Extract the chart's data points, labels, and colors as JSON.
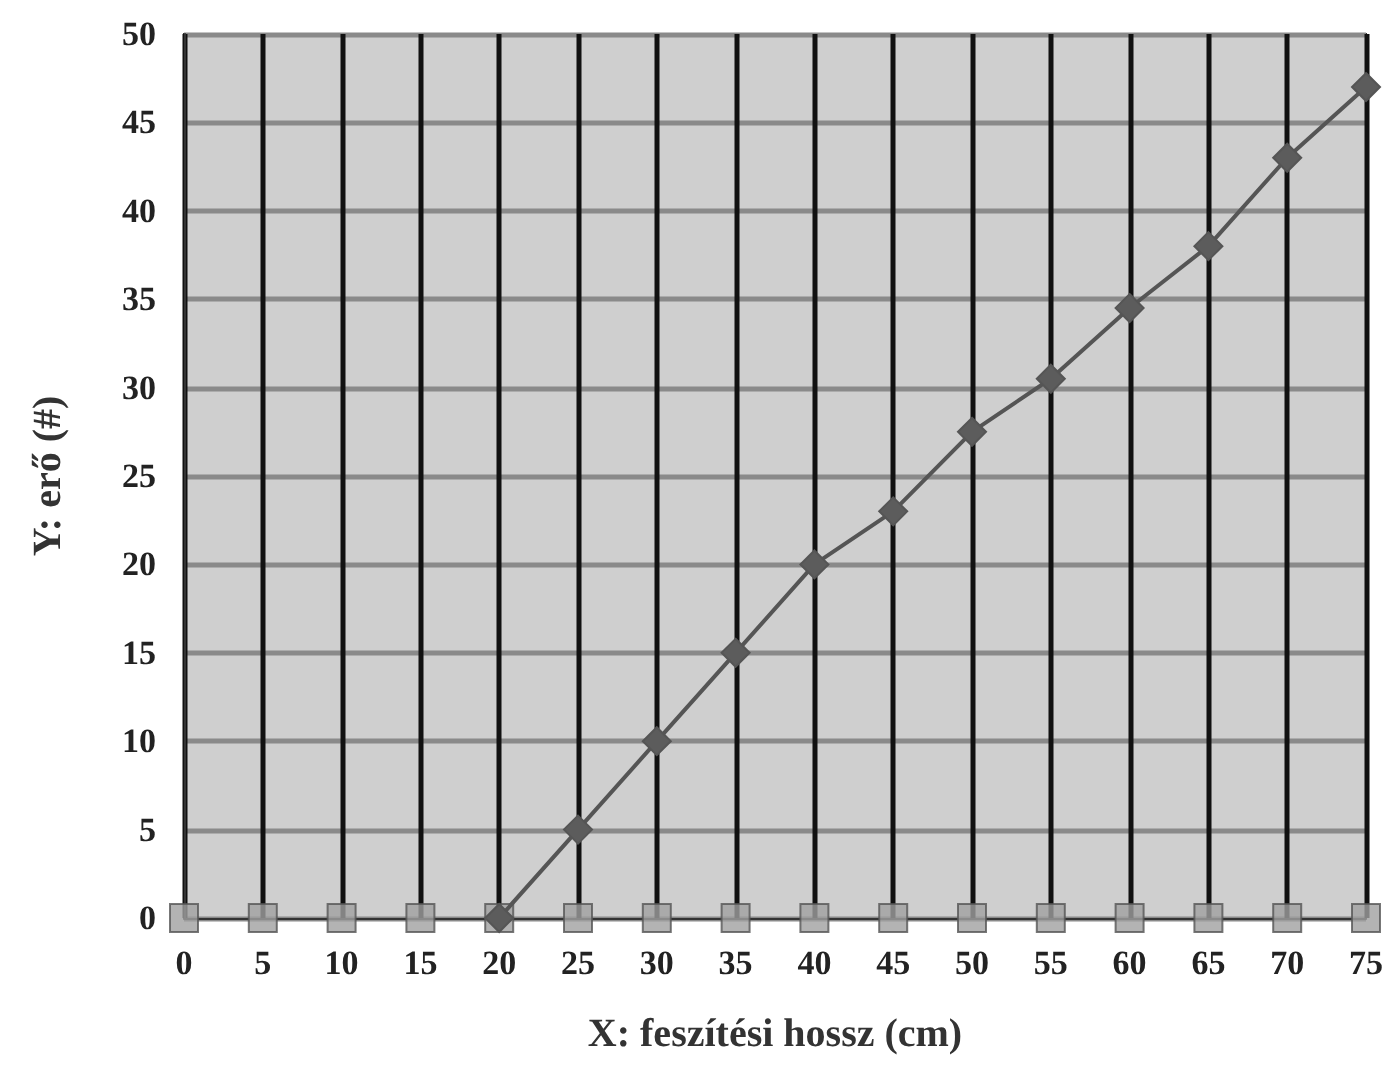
{
  "chart_data": {
    "type": "line",
    "xlabel": "X: feszítési hossz (cm)",
    "ylabel": "Y: erő (#)",
    "series": [
      {
        "marker": "diamond",
        "color": "#5c5c5c",
        "x": [
          20,
          25,
          30,
          35,
          40,
          45,
          50,
          55,
          60,
          65,
          70,
          75
        ],
        "values": [
          0,
          5,
          10,
          15,
          20,
          23,
          27.5,
          30.5,
          34.5,
          38,
          43,
          47
        ]
      },
      {
        "type": "scatter",
        "marker": "square",
        "color": "#a0a0a0",
        "x": [
          0,
          5,
          10,
          15,
          20,
          25,
          30,
          35,
          40,
          45,
          50,
          55,
          60,
          65,
          70,
          75
        ],
        "values": [
          0,
          0,
          0,
          0,
          0,
          0,
          0,
          0,
          0,
          0,
          0,
          0,
          0,
          0,
          0,
          0
        ]
      }
    ],
    "xlim": [
      0,
      75
    ],
    "xticks": [
      0,
      5,
      10,
      15,
      20,
      25,
      30,
      35,
      40,
      45,
      50,
      55,
      60,
      65,
      70,
      75
    ],
    "ylim": [
      0,
      50
    ],
    "yticks": [
      0,
      5,
      10,
      15,
      20,
      25,
      30,
      35,
      40,
      45,
      50
    ],
    "grid": true
  }
}
